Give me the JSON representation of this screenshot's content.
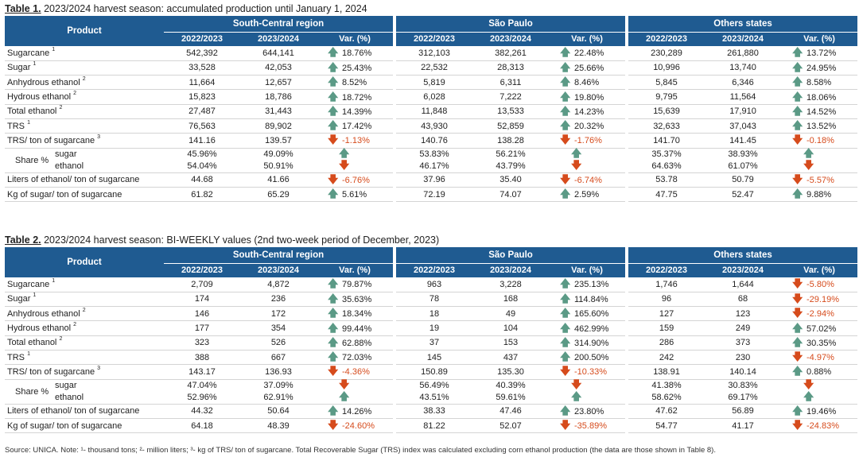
{
  "colors": {
    "header_bg": "#1f5b91",
    "up": "#5b9a86",
    "down": "#d64b1c"
  },
  "tables": [
    {
      "label": "Table 1.",
      "title": "2023/2024 harvest season: accumulated production until January 1, 2024",
      "product_header": "Product",
      "groups": [
        "South-Central region",
        "São Paulo",
        "Others states"
      ],
      "subheaders": [
        "2022/2023",
        "2023/2024",
        "Var. (%)"
      ],
      "rows": [
        {
          "label": "Sugarcane",
          "sup": "1",
          "cells": [
            [
              "542,392",
              "644,141",
              "18.76%",
              "up"
            ],
            [
              "312,103",
              "382,261",
              "22.48%",
              "up"
            ],
            [
              "230,289",
              "261,880",
              "13.72%",
              "up"
            ]
          ]
        },
        {
          "label": "Sugar",
          "sup": "1",
          "cells": [
            [
              "33,528",
              "42,053",
              "25.43%",
              "up"
            ],
            [
              "22,532",
              "28,313",
              "25.66%",
              "up"
            ],
            [
              "10,996",
              "13,740",
              "24.95%",
              "up"
            ]
          ]
        },
        {
          "label": "Anhydrous ethanol",
          "sup": "2",
          "cells": [
            [
              "11,664",
              "12,657",
              "8.52%",
              "up"
            ],
            [
              "5,819",
              "6,311",
              "8.46%",
              "up"
            ],
            [
              "5,845",
              "6,346",
              "8.58%",
              "up"
            ]
          ]
        },
        {
          "label": "Hydrous ethanol",
          "sup": "2",
          "cells": [
            [
              "15,823",
              "18,786",
              "18.72%",
              "up"
            ],
            [
              "6,028",
              "7,222",
              "19.80%",
              "up"
            ],
            [
              "9,795",
              "11,564",
              "18.06%",
              "up"
            ]
          ]
        },
        {
          "label": "Total ethanol",
          "sup": "2",
          "cells": [
            [
              "27,487",
              "31,443",
              "14.39%",
              "up"
            ],
            [
              "11,848",
              "13,533",
              "14.23%",
              "up"
            ],
            [
              "15,639",
              "17,910",
              "14.52%",
              "up"
            ]
          ]
        },
        {
          "label": "TRS",
          "sup": "1",
          "cells": [
            [
              "76,563",
              "89,902",
              "17.42%",
              "up"
            ],
            [
              "43,930",
              "52,859",
              "20.32%",
              "up"
            ],
            [
              "32,633",
              "37,043",
              "13.52%",
              "up"
            ]
          ]
        },
        {
          "label": "TRS/ ton of sugarcane",
          "sup": "3",
          "cells": [
            [
              "141.16",
              "139.57",
              "-1.13%",
              "down"
            ],
            [
              "140.76",
              "138.28",
              "-1.76%",
              "down"
            ],
            [
              "141.70",
              "141.45",
              "-0.18%",
              "down"
            ]
          ]
        },
        {
          "share": true,
          "label": "Share %",
          "items": [
            "sugar",
            "ethanol"
          ],
          "cells": [
            [
              [
                "45.96%",
                "49.09%",
                "",
                "up"
              ],
              [
                "54.04%",
                "50.91%",
                "",
                "down"
              ]
            ],
            [
              [
                "53.83%",
                "56.21%",
                "",
                "up"
              ],
              [
                "46.17%",
                "43.79%",
                "",
                "down"
              ]
            ],
            [
              [
                "35.37%",
                "38.93%",
                "",
                "up"
              ],
              [
                "64.63%",
                "61.07%",
                "",
                "down"
              ]
            ]
          ]
        },
        {
          "label": "Liters of ethanol/ ton of sugarcane",
          "sup": "",
          "cells": [
            [
              "44.68",
              "41.66",
              "-6.76%",
              "down"
            ],
            [
              "37.96",
              "35.40",
              "-6.74%",
              "down"
            ],
            [
              "53.78",
              "50.79",
              "-5.57%",
              "down"
            ]
          ]
        },
        {
          "label": "Kg of sugar/ ton of sugarcane",
          "sup": "",
          "cells": [
            [
              "61.82",
              "65.29",
              "5.61%",
              "up"
            ],
            [
              "72.19",
              "74.07",
              "2.59%",
              "up"
            ],
            [
              "47.75",
              "52.47",
              "9.88%",
              "up"
            ]
          ]
        }
      ]
    },
    {
      "label": "Table 2.",
      "title": "2023/2024 harvest season: BI-WEEKLY values (2nd two-week period of December, 2023)",
      "product_header": "Product",
      "groups": [
        "South-Central region",
        "São Paulo",
        "Others states"
      ],
      "subheaders": [
        "2022/2023",
        "2023/2024",
        "Var. (%)"
      ],
      "rows": [
        {
          "label": "Sugarcane",
          "sup": "1",
          "cells": [
            [
              "2,709",
              "4,872",
              "79.87%",
              "up"
            ],
            [
              "963",
              "3,228",
              "235.13%",
              "up"
            ],
            [
              "1,746",
              "1,644",
              "-5.80%",
              "down"
            ]
          ]
        },
        {
          "label": "Sugar",
          "sup": "1",
          "cells": [
            [
              "174",
              "236",
              "35.63%",
              "up"
            ],
            [
              "78",
              "168",
              "114.84%",
              "up"
            ],
            [
              "96",
              "68",
              "-29.19%",
              "down"
            ]
          ]
        },
        {
          "label": "Anhydrous ethanol",
          "sup": "2",
          "cells": [
            [
              "146",
              "172",
              "18.34%",
              "up"
            ],
            [
              "18",
              "49",
              "165.60%",
              "up"
            ],
            [
              "127",
              "123",
              "-2.94%",
              "down"
            ]
          ]
        },
        {
          "label": "Hydrous ethanol",
          "sup": "2",
          "cells": [
            [
              "177",
              "354",
              "99.44%",
              "up"
            ],
            [
              "19",
              "104",
              "462.99%",
              "up"
            ],
            [
              "159",
              "249",
              "57.02%",
              "up"
            ]
          ]
        },
        {
          "label": "Total ethanol",
          "sup": "2",
          "cells": [
            [
              "323",
              "526",
              "62.88%",
              "up"
            ],
            [
              "37",
              "153",
              "314.90%",
              "up"
            ],
            [
              "286",
              "373",
              "30.35%",
              "up"
            ]
          ]
        },
        {
          "label": "TRS",
          "sup": "1",
          "cells": [
            [
              "388",
              "667",
              "72.03%",
              "up"
            ],
            [
              "145",
              "437",
              "200.50%",
              "up"
            ],
            [
              "242",
              "230",
              "-4.97%",
              "down"
            ]
          ]
        },
        {
          "label": "TRS/ ton of sugarcane",
          "sup": "3",
          "cells": [
            [
              "143.17",
              "136.93",
              "-4.36%",
              "down"
            ],
            [
              "150.89",
              "135.30",
              "-10.33%",
              "down"
            ],
            [
              "138.91",
              "140.14",
              "0.88%",
              "up"
            ]
          ]
        },
        {
          "share": true,
          "label": "Share %",
          "items": [
            "sugar",
            "ethanol"
          ],
          "cells": [
            [
              [
                "47.04%",
                "37.09%",
                "",
                "down"
              ],
              [
                "52.96%",
                "62.91%",
                "",
                "up"
              ]
            ],
            [
              [
                "56.49%",
                "40.39%",
                "",
                "down"
              ],
              [
                "43.51%",
                "59.61%",
                "",
                "up"
              ]
            ],
            [
              [
                "41.38%",
                "30.83%",
                "",
                "down"
              ],
              [
                "58.62%",
                "69.17%",
                "",
                "up"
              ]
            ]
          ]
        },
        {
          "label": "Liters of ethanol/ ton of sugarcane",
          "sup": "",
          "cells": [
            [
              "44.32",
              "50.64",
              "14.26%",
              "up"
            ],
            [
              "38.33",
              "47.46",
              "23.80%",
              "up"
            ],
            [
              "47.62",
              "56.89",
              "19.46%",
              "up"
            ]
          ]
        },
        {
          "label": "Kg of sugar/ ton of sugarcane",
          "sup": "",
          "cells": [
            [
              "64.18",
              "48.39",
              "-24.60%",
              "down"
            ],
            [
              "81.22",
              "52.07",
              "-35.89%",
              "down"
            ],
            [
              "54.77",
              "41.17",
              "-24.83%",
              "down"
            ]
          ]
        }
      ]
    }
  ],
  "footnote": "Source: UNICA. Note: ¹- thousand tons; ²- million liters; ³- kg of TRS/ ton of sugarcane. Total Recoverable Sugar (TRS) index was calculated excluding corn ethanol production (the data are those shown in Table 8)."
}
